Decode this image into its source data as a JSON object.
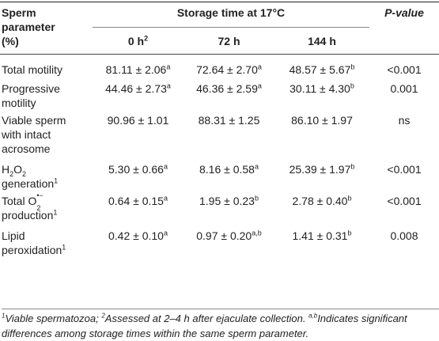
{
  "header": {
    "param_line1": "Sperm",
    "param_line2": "parameter",
    "param_line3": "(%)",
    "storage": "Storage time at 17°C",
    "pvalue": "P-value",
    "col_0h": "0 h",
    "col_0h_sup": "2",
    "col_72h": "72 h",
    "col_144h": "144 h"
  },
  "rows": [
    {
      "l1": "Total motility",
      "l2": "",
      "l3": "",
      "v0": "81.11 ± 2.06",
      "s0": "a",
      "v1": "72.64 ± 2.70",
      "s1": "a",
      "v2": "48.57 ± 5.67",
      "s2": "b",
      "p": "<0.001"
    },
    {
      "l1": "Progressive",
      "l2": "motility",
      "l3": "",
      "v0": "44.46 ± 2.73",
      "s0": "a",
      "v1": "46.36 ± 2.59",
      "s1": "a",
      "v2": "30.11 ± 4.30",
      "s2": "b",
      "p": "0.001"
    },
    {
      "l1": "Viable sperm",
      "l2": "with intact",
      "l3": "acrosome",
      "v0": "90.96 ± 1.01",
      "s0": "",
      "v1": "88.31 ± 1.25",
      "s1": "",
      "v2": "86.10 ± 1.97",
      "s2": "",
      "p": "ns"
    },
    {
      "l1a": "H",
      "l1sub": "2",
      "l1b": "O",
      "l1sub2": "2",
      "l2": "generation",
      "l2sup": "1",
      "v0": "5.30 ± 0.66",
      "s0": "a",
      "v1": "8.16 ± 0.58",
      "s1": "a",
      "v2": "25.39 ± 1.97",
      "s2": "b",
      "p": "<0.001"
    },
    {
      "l1": "Total O",
      "l1sup": "•−",
      "l1sub": "2",
      "l2": "production",
      "l2sup": "1",
      "v0": "0.64 ± 0.15",
      "s0": "a",
      "v1": "1.95 ± 0.23",
      "s1": "b",
      "v2": "2.78 ± 0.40",
      "s2": "b",
      "p": "<0.001"
    },
    {
      "l1": "Lipid",
      "l2": "peroxidation",
      "l2sup": "1",
      "v0": "0.42 ± 0.10",
      "s0": "a",
      "v1": "0.97 ± 0.20",
      "s1": "a,b",
      "v2": "1.41 ± 0.31",
      "s2": "b",
      "p": "0.008"
    }
  ],
  "footnote": {
    "sup1": "1",
    "t1": "Viable spermatozoa; ",
    "sup2": "2",
    "t2": "Assessed at 2–4 h after ejaculate collection. ",
    "sup3": "a,b",
    "t3": "Indicates significant differences among storage times within the same sperm parameter."
  }
}
